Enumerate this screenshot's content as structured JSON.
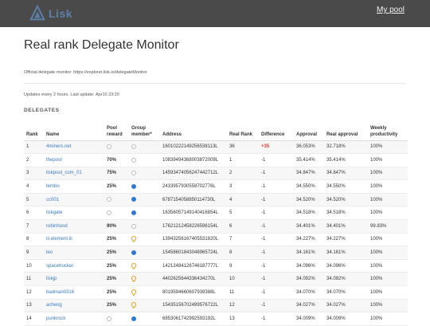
{
  "brand": {
    "logo_text": "Lisk",
    "accent": "#2b7bd6",
    "logo_color": "#5c7fa8"
  },
  "nav": {
    "my_pool": "My pool"
  },
  "page": {
    "title": "Real rank Delegate Monitor",
    "official_monitor": "Official delegate monitor: https://explorer.lisk.io/delegateMonitor",
    "update_info": "Updates every 2 hours. Last update: Apr10 23:20",
    "section": "DELEGATES"
  },
  "table": {
    "headers": {
      "rank": "Rank",
      "name": "Name",
      "pool_reward": "Pool reward",
      "group_member": "Group member*",
      "address": "Address",
      "real_rank": "Real Rank",
      "difference": "Difference",
      "approval": "Approval",
      "real_approval": "Real approval",
      "weekly_productivity": "Weekly productivity"
    },
    "rows": [
      {
        "rank": "1",
        "name": "4miners.net",
        "reward": "",
        "group": "empty",
        "address": "16010222149256538113L",
        "real_rank": "36",
        "diff": "+35",
        "approval": "36.053%",
        "real_approval": "32.718%",
        "productivity": "100%"
      },
      {
        "rank": "2",
        "name": "thepool",
        "reward": "70%",
        "group": "empty",
        "address": "10839494368003872009L",
        "real_rank": "1",
        "diff": "-1",
        "approval": "35.414%",
        "real_approval": "35.414%",
        "productivity": "100%"
      },
      {
        "rank": "3",
        "name": "liskpool_com_01",
        "reward": "75%",
        "group": "empty",
        "address": "14593474056247442712L",
        "real_rank": "2",
        "diff": "-1",
        "approval": "34.847%",
        "real_approval": "34.847%",
        "productivity": "100%"
      },
      {
        "rank": "4",
        "name": "tembo",
        "reward": "25%",
        "group": "full",
        "address": "2433957930558702776L",
        "real_rank": "3",
        "diff": "-1",
        "approval": "34.550%",
        "real_approval": "34.550%",
        "productivity": "100%"
      },
      {
        "rank": "5",
        "name": "cc001",
        "reward": "",
        "group": "full",
        "address": "6787154058850114730L",
        "real_rank": "4",
        "diff": "-1",
        "approval": "34.520%",
        "real_approval": "34.520%",
        "productivity": "100%"
      },
      {
        "rank": "6",
        "name": "liskgate",
        "reward": "",
        "group": "full",
        "address": "16356057149140416854L",
        "real_rank": "5",
        "diff": "-1",
        "approval": "34.518%",
        "real_approval": "34.518%",
        "productivity": "100%"
      },
      {
        "rank": "7",
        "name": "robinhood",
        "reward": "90%",
        "group": "empty",
        "address": "17621212458226596154L",
        "real_rank": "6",
        "diff": "-1",
        "approval": "34.401%",
        "real_approval": "34.401%",
        "productivity": "99.83%"
      },
      {
        "rank": "8",
        "name": "iii.element.iii",
        "reward": "25%",
        "group": "marker",
        "address": "13943256167405531820L",
        "real_rank": "7",
        "diff": "-1",
        "approval": "34.227%",
        "real_approval": "34.227%",
        "productivity": "100%"
      },
      {
        "rank": "9",
        "name": "leo",
        "reward": "25%",
        "group": "full",
        "address": "15458601843048965724L",
        "real_rank": "8",
        "diff": "-1",
        "approval": "34.161%",
        "real_approval": "34.161%",
        "productivity": "100%"
      },
      {
        "rank": "10",
        "name": "spacetrucker",
        "reward": "25%",
        "group": "marker",
        "address": "14212484126746187777L",
        "real_rank": "9",
        "diff": "-1",
        "approval": "34.096%",
        "real_approval": "34.096%",
        "productivity": "100%"
      },
      {
        "rank": "11",
        "name": "liskjp",
        "reward": "25%",
        "group": "marker",
        "address": "4402625644336434270L",
        "real_rank": "10",
        "diff": "-1",
        "approval": "34.092%",
        "real_approval": "34.092%",
        "productivity": "100%"
      },
      {
        "rank": "12",
        "name": "badman0316",
        "reward": "25%",
        "group": "marker",
        "address": "8019594660607939388L",
        "real_rank": "11",
        "diff": "-1",
        "approval": "34.070%",
        "real_approval": "34.070%",
        "productivity": "100%"
      },
      {
        "rank": "13",
        "name": "acheng",
        "reward": "25%",
        "group": "marker",
        "address": "15435156702499576722L",
        "real_rank": "12",
        "diff": "-1",
        "approval": "34.027%",
        "real_approval": "34.027%",
        "productivity": "100%"
      },
      {
        "rank": "14",
        "name": "punkrock",
        "reward": "",
        "group": "full",
        "address": "6853061742992593192L",
        "real_rank": "13",
        "diff": "-1",
        "approval": "34.009%",
        "real_approval": "34.009%",
        "productivity": "100%"
      }
    ]
  }
}
